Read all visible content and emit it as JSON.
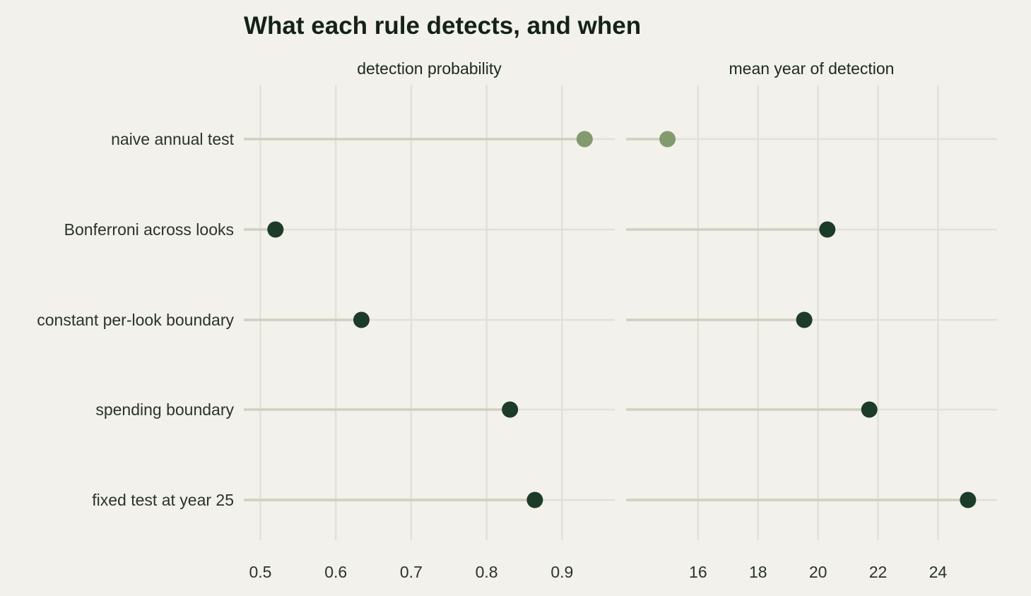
{
  "chart_data": {
    "type": "scatter",
    "subtype": "lollipop-dot-plot",
    "title": "What each rule detects, and when",
    "categories": [
      "naive annual test",
      "Bonferroni across looks",
      "constant per-look boundary",
      "spending boundary",
      "fixed test at year 25"
    ],
    "highlight": "naive annual test",
    "panels": [
      {
        "name": "detection probability",
        "xlim": [
          0.478,
          0.97
        ],
        "ticks": [
          0.5,
          0.6,
          0.7,
          0.8,
          0.9
        ],
        "tick_labels": [
          "0.5",
          "0.6",
          "0.7",
          "0.8",
          "0.9"
        ],
        "values": [
          0.93,
          0.52,
          0.634,
          0.831,
          0.864
        ]
      },
      {
        "name": "mean year of detection",
        "xlim": [
          13.6,
          25.97
        ],
        "ticks": [
          16,
          18,
          20,
          22,
          24
        ],
        "tick_labels": [
          "16",
          "18",
          "20",
          "22",
          "24"
        ],
        "values": [
          14.98,
          20.31,
          19.54,
          21.71,
          25.0
        ]
      }
    ],
    "grid": true,
    "legend": "none",
    "colors": {
      "background": "#f2f1eb",
      "grid": "#e2e1d8",
      "stem": "#d0d0bf",
      "point": "#1d3b29",
      "highlight_point": "#839a6e",
      "text": "#2a332c",
      "title": "#142218"
    }
  }
}
